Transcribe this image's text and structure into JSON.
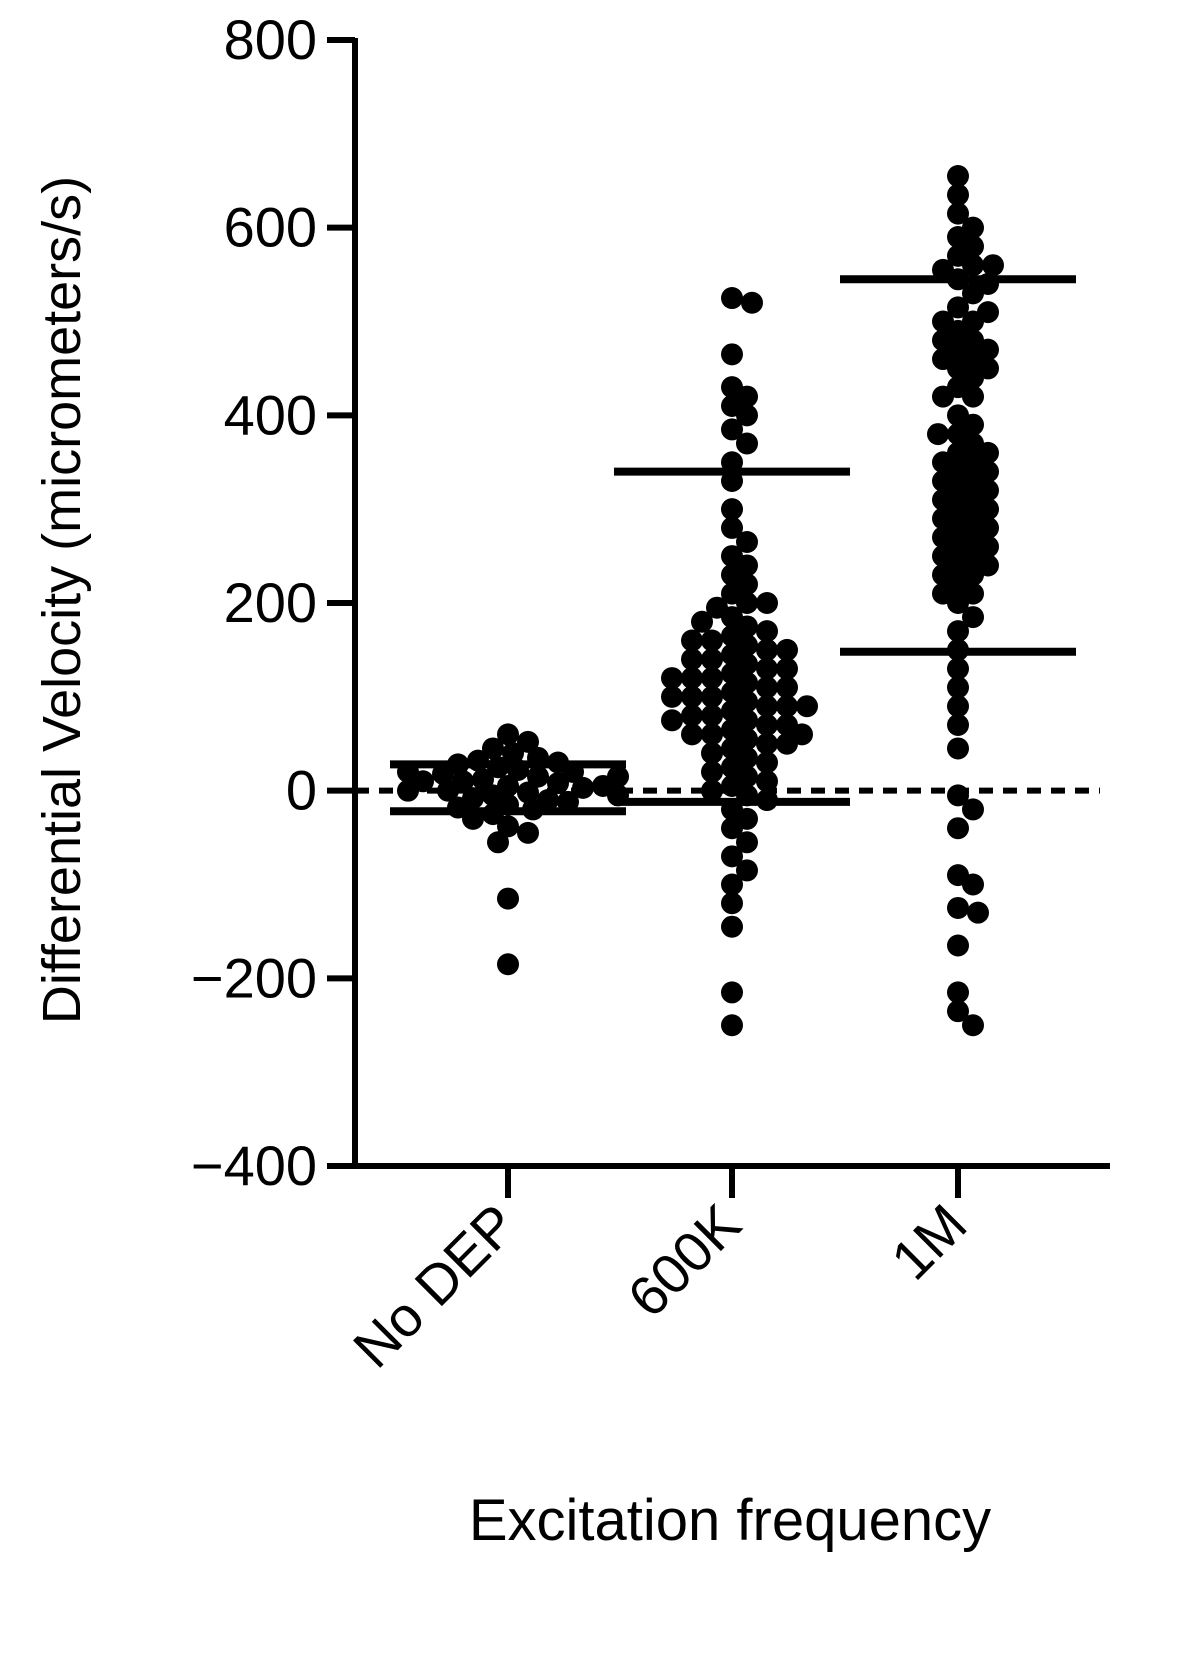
{
  "chart_data": {
    "type": "swarm",
    "y_label": "Differential Velocity (micrometers/s)",
    "x_label": "Excitation frequency",
    "categories": [
      "No DEP",
      "600K",
      "1M"
    ],
    "ylim": [
      -400,
      800
    ],
    "yticks": [
      {
        "value": -400,
        "label": "−400"
      },
      {
        "value": -200,
        "label": "−200"
      },
      0,
      200,
      400,
      600,
      800
    ],
    "color": "#000000",
    "zero_line": true,
    "groups": [
      {
        "values": [
          60,
          52,
          45,
          40,
          35,
          32,
          30,
          28,
          25,
          22,
          20,
          18,
          15,
          12,
          10,
          8,
          5,
          3,
          0,
          -2,
          -5,
          -8,
          -10,
          -12,
          -15,
          -18,
          -20,
          -25,
          -30,
          -38,
          -45,
          -55,
          -115,
          -185,
          10,
          5,
          0,
          15,
          20,
          -5
        ],
        "lines": [
          28,
          -22
        ]
      },
      {
        "values": [
          525,
          520,
          465,
          430,
          420,
          410,
          400,
          385,
          370,
          350,
          330,
          300,
          280,
          265,
          250,
          240,
          230,
          220,
          210,
          200,
          195,
          185,
          175,
          165,
          160,
          155,
          150,
          145,
          140,
          135,
          130,
          125,
          120,
          115,
          110,
          105,
          100,
          95,
          90,
          85,
          80,
          75,
          70,
          65,
          60,
          55,
          50,
          45,
          40,
          35,
          30,
          25,
          20,
          15,
          10,
          5,
          0,
          -5,
          -10,
          -20,
          -30,
          -40,
          -55,
          -70,
          -85,
          -100,
          -120,
          -145,
          -215,
          -250,
          180,
          160,
          140,
          120,
          100,
          90,
          80,
          70,
          60,
          50,
          130,
          110,
          150,
          100,
          75,
          200,
          170,
          120,
          90,
          60
        ],
        "lines": [
          340,
          -12
        ]
      },
      {
        "values": [
          655,
          635,
          615,
          600,
          590,
          580,
          570,
          560,
          555,
          545,
          530,
          515,
          500,
          490,
          480,
          470,
          460,
          450,
          440,
          430,
          420,
          400,
          390,
          380,
          370,
          360,
          350,
          340,
          330,
          320,
          310,
          300,
          290,
          280,
          270,
          260,
          250,
          240,
          230,
          220,
          210,
          200,
          185,
          170,
          150,
          130,
          110,
          90,
          70,
          45,
          -5,
          -20,
          -40,
          -90,
          -100,
          -125,
          -130,
          -165,
          -215,
          -235,
          -250,
          500,
          480,
          460,
          330,
          310,
          290,
          270,
          250,
          450,
          420,
          380,
          350,
          300,
          320,
          280,
          260,
          240,
          340,
          360,
          470,
          510,
          540,
          560,
          230,
          210
        ],
        "lines": [
          545,
          148
        ]
      }
    ]
  }
}
